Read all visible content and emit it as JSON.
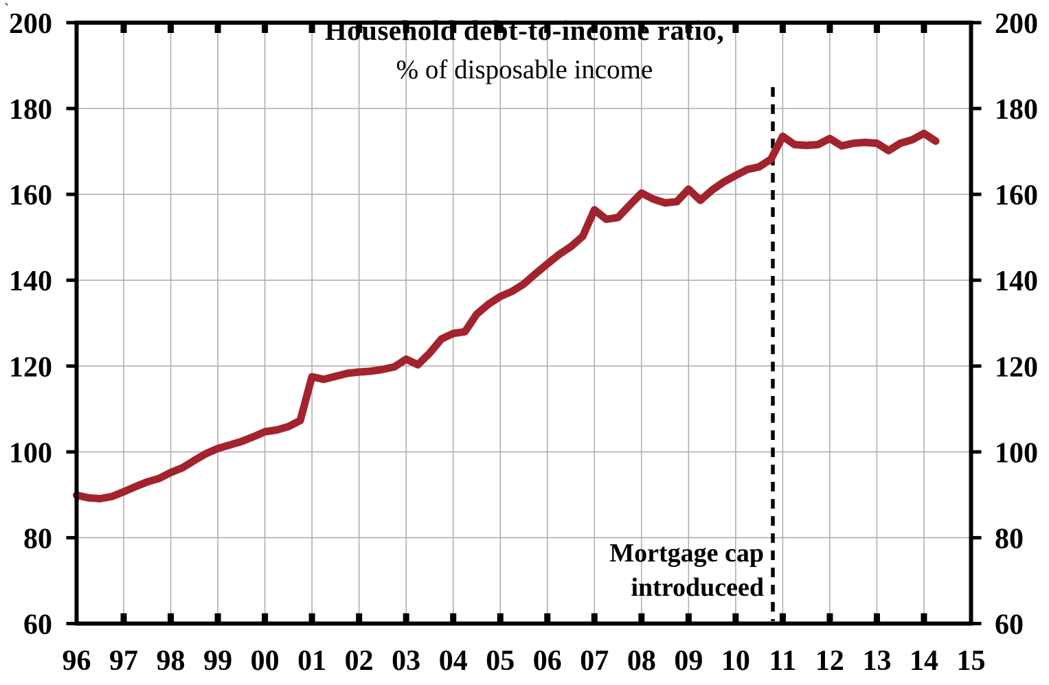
{
  "chart_data": {
    "type": "line",
    "title": "Household debt-to-income ratio,",
    "subtitle": "% of disposable income",
    "xlabel": "",
    "ylabel": "",
    "xlim": [
      1996,
      2015
    ],
    "ylim": [
      60,
      200
    ],
    "y_tick_step": 20,
    "grid": true,
    "dual_y_axis": true,
    "legend": "none",
    "x_tick_labels": [
      "96",
      "97",
      "98",
      "99",
      "00",
      "01",
      "02",
      "03",
      "04",
      "05",
      "06",
      "07",
      "08",
      "09",
      "10",
      "11",
      "12",
      "13",
      "14",
      "15"
    ],
    "y_tick_labels": [
      "60",
      "80",
      "100",
      "120",
      "140",
      "160",
      "180",
      "200"
    ],
    "x": [
      1996.0,
      1996.25,
      1996.5,
      1996.75,
      1997.0,
      1997.25,
      1997.5,
      1997.75,
      1998.0,
      1998.25,
      1998.5,
      1998.75,
      1999.0,
      1999.25,
      1999.5,
      1999.75,
      2000.0,
      2000.25,
      2000.5,
      2000.75,
      2001.0,
      2001.25,
      2001.5,
      2001.75,
      2002.0,
      2002.25,
      2002.5,
      2002.75,
      2003.0,
      2003.25,
      2003.5,
      2003.75,
      2004.0,
      2004.25,
      2004.5,
      2004.75,
      2005.0,
      2005.25,
      2005.5,
      2005.75,
      2006.0,
      2006.25,
      2006.5,
      2006.75,
      2007.0,
      2007.25,
      2007.5,
      2007.75,
      2008.0,
      2008.25,
      2008.5,
      2008.75,
      2009.0,
      2009.25,
      2009.5,
      2009.75,
      2010.0,
      2010.25,
      2010.5,
      2010.75,
      2011.0,
      2011.25,
      2011.5,
      2011.75,
      2012.0,
      2012.25,
      2012.5,
      2012.75,
      2013.0,
      2013.25,
      2013.5,
      2013.75,
      2014.0,
      2014.25
    ],
    "series": [
      {
        "name": "Household debt-to-income ratio (% of disposable income)",
        "color": "#A2232D",
        "values": [
          89.9,
          89.3,
          89.1,
          89.6,
          90.7,
          91.9,
          93.0,
          93.8,
          95.2,
          96.3,
          98.0,
          99.6,
          100.8,
          101.6,
          102.4,
          103.5,
          104.7,
          105.1,
          105.9,
          107.3,
          117.5,
          116.9,
          117.6,
          118.3,
          118.6,
          118.8,
          119.2,
          119.8,
          121.6,
          120.3,
          123.0,
          126.3,
          127.6,
          128.0,
          132.1,
          134.4,
          136.2,
          137.4,
          139.1,
          141.5,
          143.8,
          146.0,
          147.8,
          150.2,
          156.4,
          154.2,
          154.6,
          157.5,
          160.3,
          158.9,
          158.0,
          158.3,
          161.2,
          158.6,
          161.0,
          162.9,
          164.4,
          165.8,
          166.4,
          168.2,
          173.5,
          171.6,
          171.4,
          171.6,
          173.0,
          171.3,
          171.9,
          172.1,
          171.9,
          170.2,
          171.9,
          172.7,
          174.2,
          172.4
        ]
      }
    ],
    "vline": {
      "x_year": 2010.79,
      "style": "dashed",
      "color": "#000000"
    },
    "annotation": {
      "line1": "Mortgage cap",
      "line2": "introduceed",
      "position": "left of dashed line"
    }
  },
  "styles": {
    "background": "#ffffff",
    "grid_color": "#ABABAB",
    "frame_color": "#000000",
    "tick_color": "#000000",
    "label_color": "#000000",
    "line_color": "#A2232D"
  },
  "artifact": {
    "glyph": "`"
  }
}
